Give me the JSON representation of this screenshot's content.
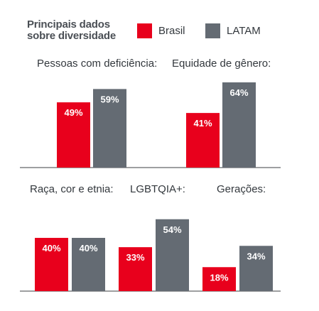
{
  "title": {
    "line1": "Principais dados",
    "line2": "sobre diversidade"
  },
  "legend": [
    {
      "label": "Brasil",
      "color": "#e8001c"
    },
    {
      "label": "LATAM",
      "color": "#646b73"
    }
  ],
  "colors": {
    "brasil": "#e8001c",
    "latam": "#646b73",
    "baseline": "#3c3f43"
  },
  "chart_data": [
    {
      "type": "bar",
      "title": "Pessoas com deficiência:",
      "series": [
        {
          "name": "Brasil",
          "values": [
            49
          ]
        },
        {
          "name": "LATAM",
          "values": [
            59
          ]
        }
      ],
      "value_labels": [
        "49%",
        "59%"
      ]
    },
    {
      "type": "bar",
      "title": "Equidade de gênero:",
      "series": [
        {
          "name": "Brasil",
          "values": [
            41
          ]
        },
        {
          "name": "LATAM",
          "values": [
            64
          ]
        }
      ],
      "value_labels": [
        "41%",
        "64%"
      ]
    },
    {
      "type": "bar",
      "title": "Raça, cor e etnia:",
      "series": [
        {
          "name": "Brasil",
          "values": [
            40
          ]
        },
        {
          "name": "LATAM",
          "values": [
            40
          ]
        }
      ],
      "value_labels": [
        "40%",
        "40%"
      ]
    },
    {
      "type": "bar",
      "title": "LGBTQIA+:",
      "series": [
        {
          "name": "Brasil",
          "values": [
            33
          ]
        },
        {
          "name": "LATAM",
          "values": [
            54
          ]
        }
      ],
      "value_labels": [
        "33%",
        "54%"
      ]
    },
    {
      "type": "bar",
      "title": "Gerações:",
      "series": [
        {
          "name": "Brasil",
          "values": [
            18
          ]
        },
        {
          "name": "LATAM",
          "values": [
            34
          ]
        }
      ],
      "value_labels": [
        "18%",
        "34%"
      ]
    }
  ]
}
